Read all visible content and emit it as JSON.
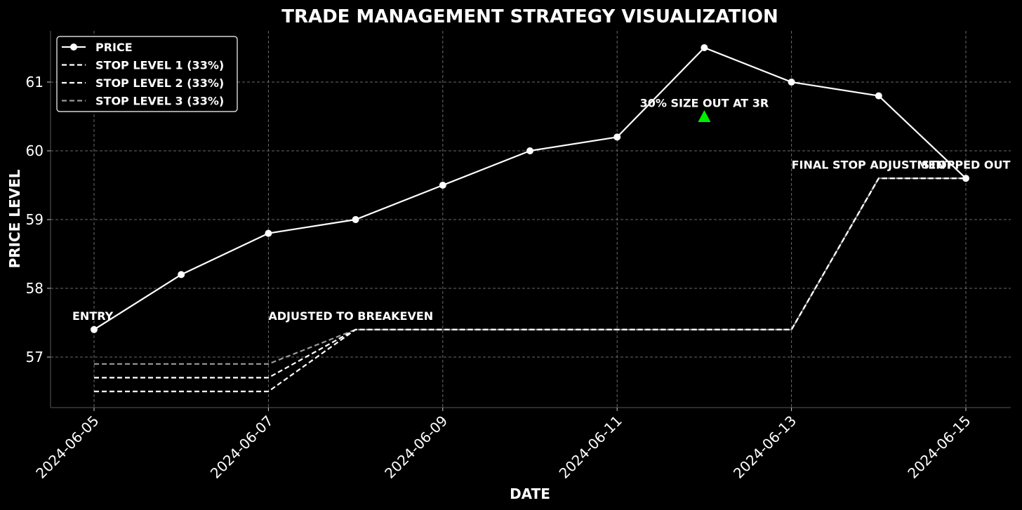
{
  "chart_data": {
    "type": "line",
    "title": "TRADE MANAGEMENT STRATEGY VISUALIZATION",
    "xlabel": "DATE",
    "ylabel": "PRICE LEVEL",
    "x": [
      "2024-06-05",
      "2024-06-06",
      "2024-06-07",
      "2024-06-08",
      "2024-06-09",
      "2024-06-10",
      "2024-06-11",
      "2024-06-12",
      "2024-06-13",
      "2024-06-14",
      "2024-06-15"
    ],
    "x_ticks": [
      "2024-06-05",
      "2024-06-07",
      "2024-06-09",
      "2024-06-11",
      "2024-06-13",
      "2024-06-15"
    ],
    "ylim": [
      56.25,
      61.75
    ],
    "y_ticks": [
      57,
      58,
      59,
      60,
      61
    ],
    "grid": true,
    "legend_position": "top-left",
    "series": [
      {
        "name": "PRICE",
        "style": "solid",
        "marker": "circle",
        "color": "#ffffff",
        "values": [
          57.4,
          58.2,
          58.8,
          59.0,
          59.5,
          60.0,
          60.2,
          61.5,
          61.0,
          60.8,
          59.6
        ]
      },
      {
        "name": "STOP LEVEL 1 (33%)",
        "style": "dashed",
        "color": "#ffffff",
        "values": [
          56.5,
          56.5,
          56.5,
          57.4,
          57.4,
          57.4,
          57.4,
          57.4,
          57.4,
          59.6,
          59.6
        ]
      },
      {
        "name": "STOP LEVEL 2 (33%)",
        "style": "dashed",
        "color": "#ffffff",
        "values": [
          56.7,
          56.7,
          56.7,
          57.4,
          57.4,
          57.4,
          57.4,
          57.4,
          57.4,
          59.6,
          59.6
        ]
      },
      {
        "name": "STOP LEVEL 3 (33%)",
        "style": "dashed",
        "color": "#9a9a9a",
        "values": [
          56.9,
          56.9,
          56.9,
          57.4,
          57.4,
          57.4,
          57.4,
          57.4,
          57.4,
          59.6,
          59.6
        ]
      }
    ],
    "annotations": [
      {
        "text": "ENTRY",
        "x": "2024-06-05",
        "y": 57.6
      },
      {
        "text": "ADJUSTED TO BREAKEVEN",
        "x": "2024-06-07",
        "y": 57.6
      },
      {
        "text": "30% SIZE OUT AT 3R",
        "x": "2024-06-12",
        "y": 60.7
      },
      {
        "text": "FINAL STOP ADJUSTMENT",
        "x": "2024-06-13",
        "y": 59.8
      },
      {
        "text": "STOPPED OUT",
        "x": "2024-06-15",
        "y": 59.8
      }
    ],
    "markers": [
      {
        "type": "triangle-up",
        "x": "2024-06-12",
        "y": 60.5,
        "color": "#00ee00"
      }
    ]
  }
}
